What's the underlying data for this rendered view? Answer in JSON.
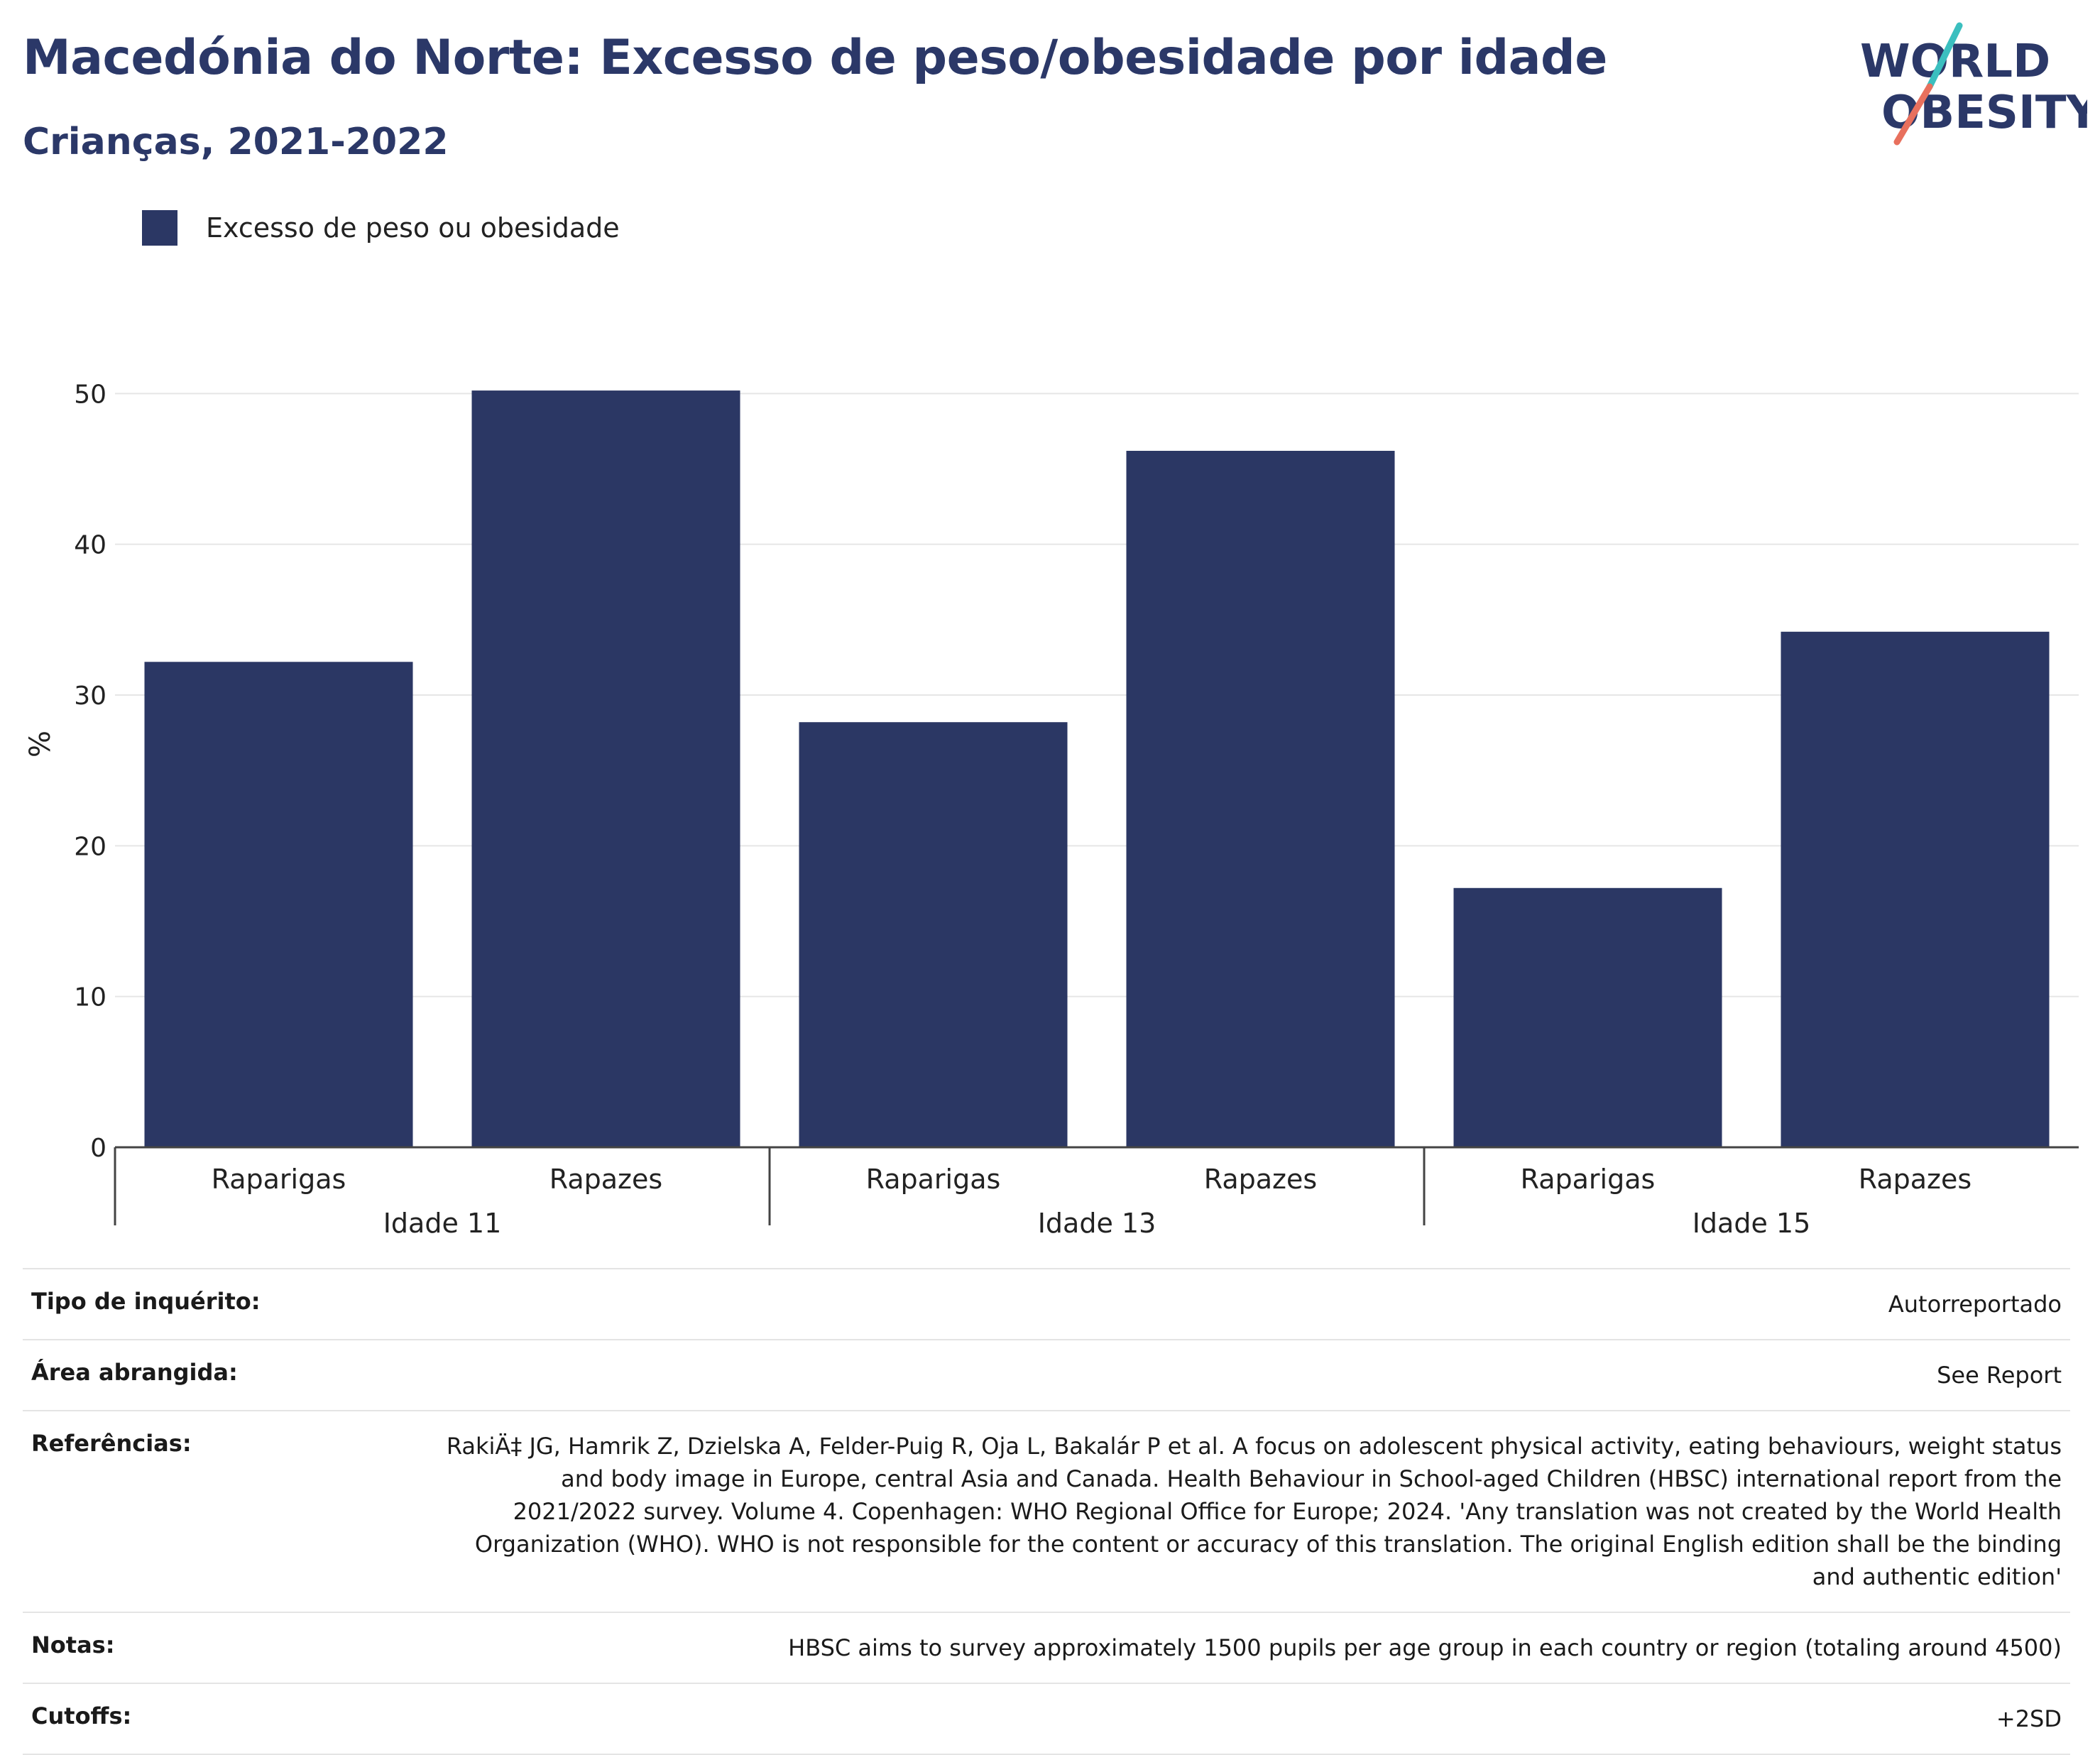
{
  "title": "Macedónia do Norte: Excesso de peso/obesidade por idade",
  "subtitle": "Crianças, 2021-2022",
  "logo": {
    "line1": "WORLD",
    "line2": "OBESITY"
  },
  "colors": {
    "bar": "#2b3764",
    "title": "#2b3868",
    "logo_teal": "#3bbfbf",
    "logo_coral": "#e8705d"
  },
  "chart_data": {
    "type": "bar",
    "ylabel": "%",
    "ylim": [
      0,
      50
    ],
    "yticks": [
      0,
      10,
      20,
      30,
      40,
      50
    ],
    "grid": true,
    "legend": {
      "placement": "top-left",
      "entries": [
        "Excesso de peso ou obesidade"
      ]
    },
    "groups": [
      {
        "label": "Idade 11",
        "bars": [
          {
            "category": "Raparigas",
            "value": 32.2
          },
          {
            "category": "Rapazes",
            "value": 50.2
          }
        ]
      },
      {
        "label": "Idade 13",
        "bars": [
          {
            "category": "Raparigas",
            "value": 28.2
          },
          {
            "category": "Rapazes",
            "value": 46.2
          }
        ]
      },
      {
        "label": "Idade 15",
        "bars": [
          {
            "category": "Raparigas",
            "value": 17.2
          },
          {
            "category": "Rapazes",
            "value": 34.2
          }
        ]
      }
    ],
    "series": [
      {
        "name": "Excesso de peso ou obesidade",
        "values": [
          32.2,
          50.2,
          28.2,
          46.2,
          17.2,
          34.2
        ]
      }
    ]
  },
  "meta": [
    {
      "label": "Tipo de inquérito:",
      "value": "Autorreportado"
    },
    {
      "label": "Área abrangida:",
      "value": "See Report"
    },
    {
      "label": "Referências:",
      "value": "RakiÄ‡ JG, Hamrik Z, Dzielska A, Felder-Puig R, Oja L, Bakalár P et al. A focus on adolescent physical activity, eating behaviours, weight status and body image in Europe, central Asia and Canada. Health Behaviour in School-aged Children (HBSC) international report from the 2021/2022 survey. Volume 4. Copenhagen: WHO Regional Office for Europe; 2024. 'Any translation was not created by the World Health Organization (WHO). WHO is not responsible for the content or accuracy of this translation. The original English edition shall be the binding and authentic edition'"
    },
    {
      "label": "Notas:",
      "value": "HBSC aims to survey approximately 1500 pupils per age group in each country or region (totaling around 4500)"
    },
    {
      "label": "Cutoffs:",
      "value": "+2SD"
    }
  ]
}
